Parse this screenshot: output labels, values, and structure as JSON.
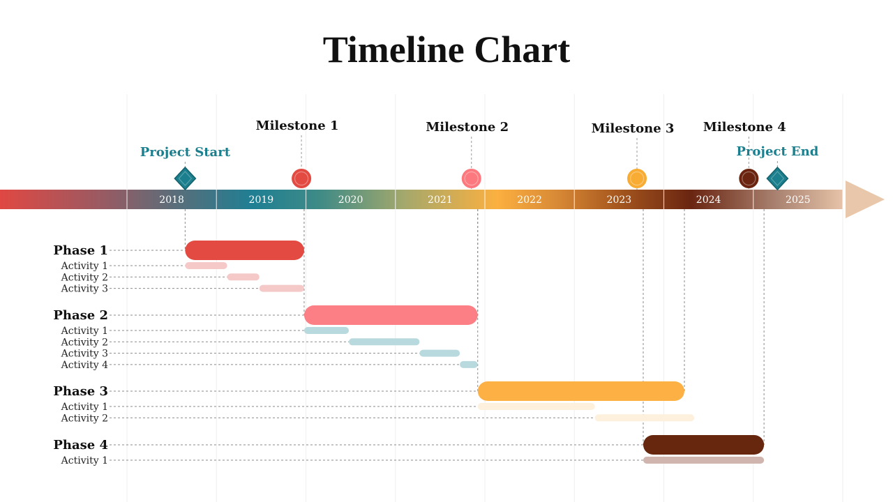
{
  "title": "Timeline Chart",
  "chart_data": {
    "type": "gantt",
    "title": "Timeline Chart",
    "years": [
      "2018",
      "2019",
      "2020",
      "2021",
      "2022",
      "2023",
      "2024",
      "2025"
    ],
    "markers": [
      {
        "label": "Project Start",
        "date": 2018.65,
        "kind": "diamond",
        "color": "#1b7f8e"
      },
      {
        "label": "Milestone 1",
        "date": 2019.95,
        "kind": "circle",
        "color": "#e24a42"
      },
      {
        "label": "Milestone 2",
        "date": 2021.85,
        "kind": "circle",
        "color": "#fc7a7f"
      },
      {
        "label": "Milestone 3",
        "date": 2023.7,
        "kind": "circle",
        "color": "#f8ac33"
      },
      {
        "label": "Milestone 4",
        "date": 2024.95,
        "kind": "circle",
        "color": "#6b2410"
      },
      {
        "label": "Project End",
        "date": 2025.27,
        "kind": "diamond",
        "color": "#1b7f8e"
      }
    ],
    "phases": [
      {
        "label": "Phase 1",
        "start": 2018.65,
        "end": 2019.98,
        "color": "#e24a42",
        "act_color": "#f4c9c8",
        "activities": [
          {
            "label": "Activity 1",
            "start": 2018.65,
            "end": 2019.12
          },
          {
            "label": "Activity 2",
            "start": 2019.12,
            "end": 2019.48
          },
          {
            "label": "Activity 3",
            "start": 2019.48,
            "end": 2019.98
          }
        ]
      },
      {
        "label": "Phase 2",
        "start": 2019.98,
        "end": 2021.92,
        "color": "#fc7f85",
        "act_color": "#b8dade",
        "activities": [
          {
            "label": "Activity 1",
            "start": 2019.98,
            "end": 2020.48
          },
          {
            "label": "Activity 2",
            "start": 2020.48,
            "end": 2021.27
          },
          {
            "label": "Activity 3",
            "start": 2021.27,
            "end": 2021.72
          },
          {
            "label": "Activity 4",
            "start": 2021.72,
            "end": 2021.92
          }
        ]
      },
      {
        "label": "Phase 3",
        "start": 2021.92,
        "end": 2024.23,
        "color": "#fdb145",
        "act_color": "#fdf0dc",
        "activities": [
          {
            "label": "Activity 1",
            "start": 2021.92,
            "end": 2023.23
          },
          {
            "label": "Activity 2",
            "start": 2023.23,
            "end": 2024.34
          }
        ]
      },
      {
        "label": "Phase 4",
        "start": 2023.77,
        "end": 2025.12,
        "color": "#67270f",
        "act_color": "#cfb5ad",
        "activities": [
          {
            "label": "Activity 1",
            "start": 2023.77,
            "end": 2025.12
          }
        ]
      }
    ]
  }
}
